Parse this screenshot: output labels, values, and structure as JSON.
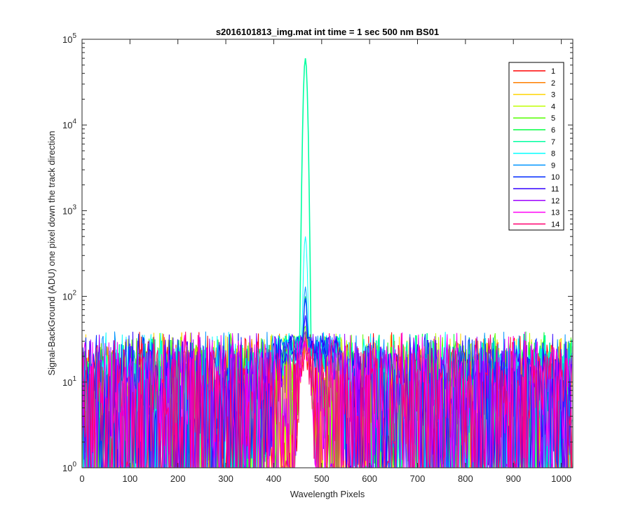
{
  "chart_data": {
    "type": "line",
    "title": "s2016101813_img.mat int time = 1 sec  500 nm BS01",
    "xlabel": "Wavelength Pixels",
    "ylabel": "Signal-BackGround (ADU) one pixel down the track direction",
    "x_range": [
      0,
      1024
    ],
    "ylim": [
      1,
      100000
    ],
    "y_scale": "log",
    "grid": false,
    "legend_position": "top-right",
    "x_ticks": [
      "0",
      "100",
      "200",
      "300",
      "400",
      "500",
      "600",
      "700",
      "800",
      "900",
      "1000"
    ],
    "x_tick_values": [
      0,
      100,
      200,
      300,
      400,
      500,
      600,
      700,
      800,
      900,
      1000
    ],
    "y_ticks": [
      {
        "base": "10",
        "exp": "0",
        "value": 1
      },
      {
        "base": "10",
        "exp": "1",
        "value": 10
      },
      {
        "base": "10",
        "exp": "2",
        "value": 100
      },
      {
        "base": "10",
        "exp": "3",
        "value": 1000
      },
      {
        "base": "10",
        "exp": "4",
        "value": 10000
      },
      {
        "base": "10",
        "exp": "5",
        "value": 100000
      }
    ],
    "series": [
      {
        "name": "1",
        "color": "#ff0000",
        "peak_x": 466,
        "peak_y": 30
      },
      {
        "name": "2",
        "color": "#ff7f00",
        "peak_x": 466,
        "peak_y": 35
      },
      {
        "name": "3",
        "color": "#ffd400",
        "peak_x": 466,
        "peak_y": 38
      },
      {
        "name": "4",
        "color": "#bfff00",
        "peak_x": 466,
        "peak_y": 40
      },
      {
        "name": "5",
        "color": "#55ff00",
        "peak_x": 466,
        "peak_y": 45
      },
      {
        "name": "6",
        "color": "#00ff40",
        "peak_x": 466,
        "peak_y": 100
      },
      {
        "name": "7",
        "color": "#00ffa0",
        "peak_x": 466,
        "peak_y": 60000
      },
      {
        "name": "8",
        "color": "#00ffff",
        "peak_x": 466,
        "peak_y": 500
      },
      {
        "name": "9",
        "color": "#0095ff",
        "peak_x": 466,
        "peak_y": 130
      },
      {
        "name": "10",
        "color": "#002bff",
        "peak_x": 466,
        "peak_y": 95
      },
      {
        "name": "11",
        "color": "#3300ff",
        "peak_x": 466,
        "peak_y": 60
      },
      {
        "name": "12",
        "color": "#9d00ff",
        "peak_x": 466,
        "peak_y": 40
      },
      {
        "name": "13",
        "color": "#ff00f5",
        "peak_x": 466,
        "peak_y": 35
      },
      {
        "name": "14",
        "color": "#ff0070",
        "peak_x": 466,
        "peak_y": 30
      }
    ]
  }
}
